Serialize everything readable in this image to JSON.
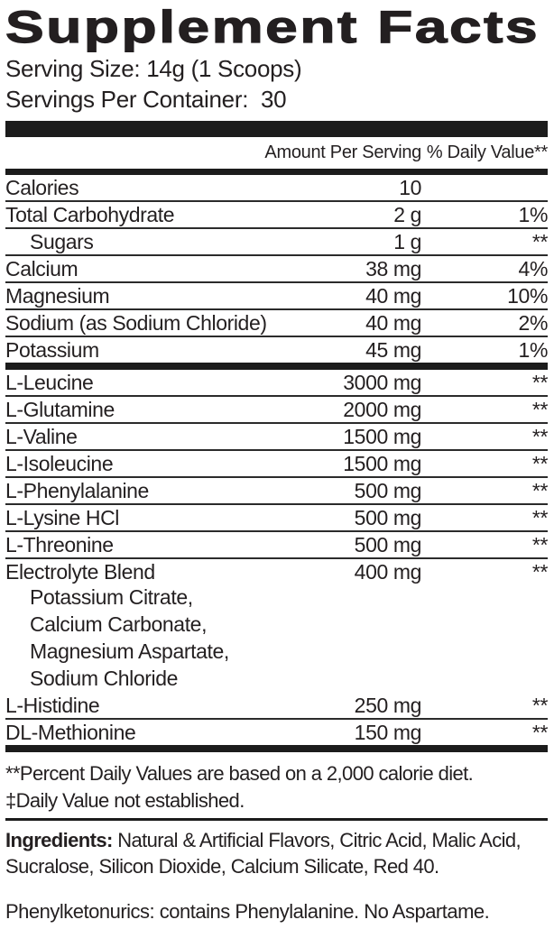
{
  "title": "Supplement Facts",
  "serving": {
    "size_line": "Serving Size: 14g (1 Scoops)",
    "per_container_line": "Servings Per Container:  30"
  },
  "table": {
    "amount_header": "Amount Per Serving",
    "dv_header": "% Daily Value**",
    "rows": [
      {
        "name": "Calories",
        "amount": "10",
        "dv": "",
        "sep": "thin"
      },
      {
        "name": "Total Carbohydrate",
        "amount": "2 g",
        "dv": "1%",
        "sep": "thin"
      },
      {
        "name": "Sugars",
        "amount": "1 g",
        "dv": "**",
        "indent": true,
        "sep": "thin"
      },
      {
        "name": "Calcium",
        "amount": "38 mg",
        "dv": "4%",
        "sep": "thin"
      },
      {
        "name": "Magnesium",
        "amount": "40 mg",
        "dv": "10%",
        "sep": "thin"
      },
      {
        "name": "Sodium (as Sodium Chloride)",
        "amount": "40 mg",
        "dv": "2%",
        "sep": "thin"
      },
      {
        "name": "Potassium",
        "amount": "45 mg",
        "dv": "1%",
        "sep": "thick"
      },
      {
        "name": "L-Leucine",
        "amount": "3000 mg",
        "dv": "**",
        "sep": "thin"
      },
      {
        "name": "L-Glutamine",
        "amount": "2000 mg",
        "dv": "**",
        "sep": "thin"
      },
      {
        "name": "L-Valine",
        "amount": "1500 mg",
        "dv": "**",
        "sep": "thin"
      },
      {
        "name": "L-Isoleucine",
        "amount": "1500 mg",
        "dv": "**",
        "sep": "thin"
      },
      {
        "name": "L-Phenylalanine",
        "amount": "500 mg",
        "dv": "**",
        "sep": "thin"
      },
      {
        "name": "L-Lysine HCl",
        "amount": "500 mg",
        "dv": "**",
        "sep": "thin"
      },
      {
        "name": "L-Threonine",
        "amount": "500 mg",
        "dv": "**",
        "sep": "thin"
      },
      {
        "name": "Electrolyte Blend",
        "amount": "400 mg",
        "dv": "**",
        "sep": "none",
        "sublines": [
          "Potassium Citrate,",
          "Calcium Carbonate,",
          "Magnesium Aspartate,",
          "Sodium Chloride"
        ]
      },
      {
        "name": "L-Histidine",
        "amount": "250 mg",
        "dv": "**",
        "sep": "thin"
      },
      {
        "name": "DL-Methionine",
        "amount": "150 mg",
        "dv": "**",
        "sep": "thick"
      }
    ]
  },
  "footnotes": [
    "**Percent Daily Values are based on a 2,000 calorie diet.",
    "‡Daily Value not established."
  ],
  "ingredients": {
    "label": "Ingredients:",
    "text": " Natural & Artificial Flavors, Citric Acid, Malic Acid, Sucralose, Silicon Dioxide, Calcium Silicate, Red 40."
  },
  "allergen": "Phenylketonurics: contains Phenylalanine. No Aspartame.",
  "colors": {
    "text": "#231f20",
    "background": "#ffffff",
    "bars": "#1c1c1c"
  }
}
